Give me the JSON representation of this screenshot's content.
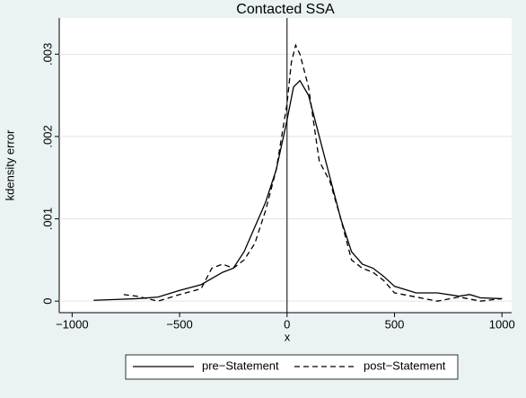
{
  "chart_data": {
    "type": "line",
    "title": "Contacted SSA",
    "x_label": "x",
    "y_label": "kdensity error",
    "series": [
      {
        "name": "pre−Statement",
        "color": "#000000",
        "dash": "solid",
        "x": [
          -900,
          -800,
          -700,
          -600,
          -500,
          -400,
          -300,
          -250,
          -200,
          -150,
          -100,
          -50,
          0,
          30,
          60,
          100,
          150,
          200,
          250,
          300,
          350,
          400,
          450,
          500,
          600,
          700,
          800,
          850,
          900,
          1000
        ],
        "values": [
          1e-05,
          2e-05,
          3e-05,
          5e-05,
          0.00013,
          0.0002,
          0.00035,
          0.0004,
          0.0006,
          0.0009,
          0.0012,
          0.0016,
          0.0022,
          0.0026,
          0.00268,
          0.0025,
          0.002,
          0.0015,
          0.001,
          0.0006,
          0.00045,
          0.0004,
          0.0003,
          0.00018,
          0.0001,
          0.0001,
          6e-05,
          8e-05,
          4e-05,
          3e-05
        ]
      },
      {
        "name": "post−Statement",
        "color": "#000000",
        "dash": "dashed",
        "x": [
          -760,
          -700,
          -600,
          -500,
          -400,
          -350,
          -300,
          -250,
          -200,
          -150,
          -100,
          -50,
          0,
          20,
          40,
          60,
          100,
          150,
          200,
          250,
          300,
          350,
          400,
          450,
          500,
          600,
          700,
          800,
          900,
          1000
        ],
        "values": [
          8e-05,
          6e-05,
          0.0,
          8e-05,
          0.00015,
          0.0004,
          0.00045,
          0.0004,
          0.0005,
          0.0007,
          0.0011,
          0.0016,
          0.0024,
          0.0029,
          0.00311,
          0.003,
          0.0026,
          0.0017,
          0.00145,
          0.001,
          0.0005,
          0.0004,
          0.00035,
          0.00025,
          0.0001,
          5e-05,
          0.0,
          5e-05,
          0.0,
          3e-05
        ]
      }
    ],
    "xlim": [
      -1060,
      1045
    ],
    "ylim": [
      -0.00014,
      0.00344
    ],
    "xticks": [
      {
        "value": -1000,
        "label": "−1000"
      },
      {
        "value": -500,
        "label": "−500"
      },
      0,
      500,
      1000
    ],
    "yticks": [
      0,
      {
        "value": 0.001,
        "label": ".001"
      },
      {
        "value": 0.002,
        "label": ".002"
      },
      {
        "value": 0.003,
        "label": ".003"
      }
    ],
    "xline": 0,
    "grid": true,
    "legend": "bottom"
  }
}
